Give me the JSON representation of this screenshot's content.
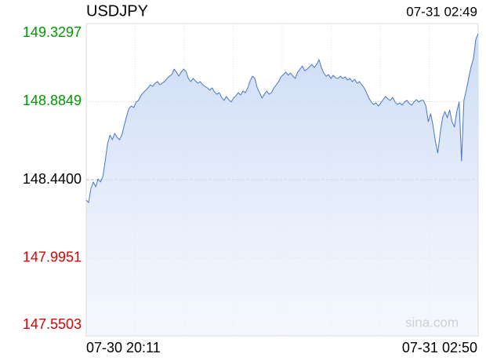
{
  "chart_data": {
    "type": "line",
    "title": "USDJPY",
    "timestamp": "07-31 02:49",
    "x_labels": [
      "07-30 20:11",
      "07-31 02:50"
    ],
    "watermark": "sina.com",
    "ylim": [
      147.5503,
      149.3297
    ],
    "yticks": [
      147.5503,
      147.9951,
      {
        "value": 148.44,
        "label": "148.4400"
      },
      148.8849,
      149.3297
    ],
    "up_color": "#009900",
    "down_color": "#dd0000",
    "flat_color": "#000000",
    "grid": true,
    "series": [
      {
        "name": "USDJPY",
        "color": "#4a76c4",
        "values": [
          148.324,
          148.31,
          148.391,
          148.427,
          148.4,
          148.444,
          148.427,
          148.458,
          148.547,
          148.646,
          148.695,
          148.668,
          148.704,
          148.681,
          148.668,
          148.695,
          148.749,
          148.802,
          148.847,
          148.86,
          148.851,
          148.883,
          148.892,
          148.918,
          148.936,
          148.95,
          148.963,
          148.981,
          148.972,
          148.99,
          148.999,
          148.981,
          148.99,
          148.999,
          149.017,
          149.03,
          149.039,
          149.07,
          149.053,
          149.03,
          149.053,
          149.07,
          149.057,
          149.017,
          148.999,
          149.017,
          149.003,
          148.99,
          148.999,
          148.981,
          148.972,
          148.963,
          148.95,
          148.963,
          148.941,
          148.927,
          148.936,
          148.909,
          148.892,
          148.914,
          148.896,
          148.883,
          148.905,
          148.918,
          148.936,
          148.923,
          148.945,
          148.936,
          148.963,
          149.003,
          149.03,
          149.017,
          148.963,
          148.936,
          148.905,
          148.927,
          148.945,
          148.927,
          148.936,
          148.963,
          148.981,
          148.999,
          149.026,
          149.039,
          149.053,
          149.035,
          149.048,
          149.03,
          149.017,
          149.053,
          149.07,
          149.088,
          149.061,
          149.07,
          149.084,
          149.097,
          149.079,
          149.097,
          149.124,
          149.079,
          149.048,
          149.03,
          149.039,
          149.017,
          149.035,
          149.021,
          149.017,
          149.03,
          149.017,
          149.026,
          149.008,
          149.017,
          148.999,
          149.012,
          148.99,
          148.999,
          148.981,
          148.963,
          148.936,
          148.905,
          148.883,
          148.869,
          148.878,
          148.86,
          148.878,
          148.896,
          148.914,
          148.901,
          148.892,
          148.909,
          148.883,
          148.869,
          148.878,
          148.865,
          148.883,
          148.892,
          148.874,
          148.865,
          148.883,
          148.896,
          148.883,
          148.892,
          148.892,
          148.86,
          148.771,
          148.816,
          148.749,
          148.659,
          148.592,
          148.704,
          148.793,
          148.829,
          148.793,
          148.838,
          148.771,
          148.74,
          148.829,
          148.883,
          148.547,
          148.892,
          148.95,
          149.017,
          149.084,
          149.129,
          149.24,
          149.272
        ]
      }
    ]
  }
}
